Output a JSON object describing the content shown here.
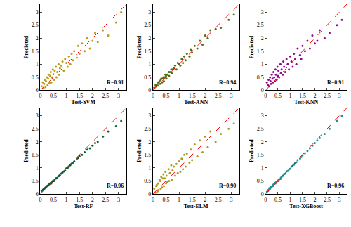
{
  "chart_data": [
    {
      "type": "scatter",
      "x_label": "Test-SVM",
      "y_label": "Predicted",
      "annotation": "R=0.91",
      "xlim": [
        0,
        3.3
      ],
      "ylim": [
        0,
        3.3
      ],
      "xticks": [
        0,
        0.5,
        1,
        1.5,
        2,
        2.5,
        3
      ],
      "yticks": [
        0,
        0.5,
        1,
        1.5,
        2,
        2.5,
        3
      ],
      "grid": false,
      "series": [
        {
          "type": "scatter",
          "color": "#b89e12",
          "marker": "circle",
          "x": [
            0.05,
            0.1,
            0.12,
            0.15,
            0.18,
            0.2,
            0.22,
            0.25,
            0.28,
            0.3,
            0.32,
            0.35,
            0.38,
            0.4,
            0.42,
            0.45,
            0.48,
            0.5,
            0.52,
            0.55,
            0.6,
            0.62,
            0.65,
            0.7,
            0.72,
            0.75,
            0.8,
            0.85,
            0.9,
            0.95,
            1.0,
            1.05,
            1.1,
            1.15,
            1.2,
            1.25,
            1.3,
            1.4,
            1.45,
            1.5,
            1.6,
            1.7,
            1.8,
            1.9,
            2.0,
            2.1,
            2.2,
            2.4,
            2.6,
            2.9,
            3.1
          ],
          "y": [
            0.15,
            0.3,
            0.08,
            0.25,
            0.4,
            0.12,
            0.35,
            0.5,
            0.2,
            0.45,
            0.6,
            0.28,
            0.55,
            0.7,
            0.3,
            0.5,
            0.8,
            0.62,
            0.4,
            0.75,
            0.9,
            0.5,
            0.7,
            1.0,
            0.6,
            0.85,
            0.95,
            1.1,
            0.75,
            1.2,
            1.05,
            0.9,
            1.3,
            1.0,
            1.4,
            1.15,
            1.5,
            1.25,
            1.7,
            1.4,
            1.8,
            1.5,
            2.0,
            1.6,
            1.9,
            2.2,
            1.85,
            2.3,
            2.1,
            2.6,
            3.0
          ]
        },
        {
          "type": "line",
          "color": "#ff0000",
          "line_style": "dash",
          "x": [
            0,
            3.3
          ],
          "y": [
            0,
            3.3
          ]
        }
      ]
    },
    {
      "type": "scatter",
      "x_label": "Test-ANN",
      "y_label": "Predicted",
      "annotation": "R=0.94",
      "xlim": [
        0,
        3.3
      ],
      "ylim": [
        0,
        3.3
      ],
      "xticks": [
        0,
        0.5,
        1,
        1.5,
        2,
        2.5,
        3
      ],
      "yticks": [
        0,
        0.5,
        1,
        1.5,
        2,
        2.5,
        3
      ],
      "grid": false,
      "series": [
        {
          "type": "scatter",
          "color": "#4f6e14",
          "marker": "circle",
          "x": [
            0.05,
            0.1,
            0.12,
            0.15,
            0.18,
            0.2,
            0.22,
            0.25,
            0.28,
            0.3,
            0.32,
            0.35,
            0.38,
            0.4,
            0.42,
            0.45,
            0.48,
            0.5,
            0.52,
            0.55,
            0.6,
            0.62,
            0.65,
            0.7,
            0.72,
            0.75,
            0.8,
            0.85,
            0.9,
            0.95,
            1.0,
            1.05,
            1.1,
            1.15,
            1.2,
            1.25,
            1.3,
            1.4,
            1.45,
            1.5,
            1.6,
            1.7,
            1.8,
            1.9,
            2.0,
            2.1,
            2.2,
            2.4,
            2.6,
            2.9,
            3.1
          ],
          "y": [
            0.1,
            0.2,
            0.15,
            0.2,
            0.3,
            0.18,
            0.3,
            0.35,
            0.25,
            0.4,
            0.45,
            0.3,
            0.45,
            0.5,
            0.35,
            0.5,
            0.6,
            0.55,
            0.45,
            0.6,
            0.7,
            0.55,
            0.7,
            0.8,
            0.65,
            0.8,
            0.85,
            0.95,
            0.8,
            1.05,
            1.0,
            0.95,
            1.2,
            1.05,
            1.3,
            1.15,
            1.4,
            1.3,
            1.55,
            1.45,
            1.7,
            1.6,
            1.9,
            1.75,
            2.1,
            2.0,
            2.3,
            2.35,
            2.4,
            2.7,
            2.9
          ]
        },
        {
          "type": "line",
          "color": "#ff0000",
          "line_style": "dash",
          "x": [
            0,
            3.3
          ],
          "y": [
            0,
            3.3
          ]
        }
      ]
    },
    {
      "type": "scatter",
      "x_label": "Test-KNN",
      "y_label": "Predicted",
      "annotation": "R=0.91",
      "xlim": [
        0,
        3.3
      ],
      "ylim": [
        0,
        3.3
      ],
      "xticks": [
        0,
        0.5,
        1,
        1.5,
        2,
        2.5,
        3
      ],
      "yticks": [
        0,
        0.5,
        1,
        1.5,
        2,
        2.5,
        3
      ],
      "grid": false,
      "series": [
        {
          "type": "scatter",
          "color": "#8e0a8e",
          "marker": "circle",
          "x": [
            0.05,
            0.1,
            0.12,
            0.15,
            0.18,
            0.2,
            0.22,
            0.25,
            0.28,
            0.3,
            0.32,
            0.35,
            0.38,
            0.4,
            0.42,
            0.45,
            0.48,
            0.5,
            0.52,
            0.55,
            0.6,
            0.62,
            0.65,
            0.7,
            0.72,
            0.75,
            0.8,
            0.85,
            0.9,
            0.95,
            1.0,
            1.05,
            1.1,
            1.15,
            1.2,
            1.25,
            1.3,
            1.4,
            1.45,
            1.5,
            1.6,
            1.7,
            1.8,
            1.9,
            2.0,
            2.1,
            2.2,
            2.4,
            2.6,
            2.9,
            3.1
          ],
          "y": [
            0.3,
            0.2,
            0.4,
            0.15,
            0.5,
            0.35,
            0.25,
            0.6,
            0.45,
            0.3,
            0.7,
            0.5,
            0.35,
            0.8,
            0.6,
            0.4,
            0.9,
            0.55,
            0.75,
            0.5,
            1.0,
            0.65,
            0.8,
            0.6,
            1.1,
            0.9,
            0.7,
            1.2,
            1.0,
            0.8,
            1.3,
            1.1,
            0.9,
            1.4,
            1.2,
            1.0,
            1.6,
            1.35,
            1.2,
            1.7,
            1.5,
            1.9,
            1.6,
            2.1,
            1.8,
            1.9,
            2.3,
            2.0,
            2.2,
            2.5,
            2.7
          ]
        },
        {
          "type": "line",
          "color": "#ff0000",
          "line_style": "dash",
          "x": [
            0,
            3.3
          ],
          "y": [
            0,
            3.3
          ]
        }
      ]
    },
    {
      "type": "scatter",
      "x_label": "Test-RF",
      "y_label": "Predicted",
      "annotation": "R=0.96",
      "xlim": [
        0,
        3.3
      ],
      "ylim": [
        0,
        3.3
      ],
      "xticks": [
        0,
        0.5,
        1,
        1.5,
        2,
        2.5,
        3
      ],
      "yticks": [
        0,
        0.5,
        1,
        1.5,
        2,
        2.5,
        3
      ],
      "grid": false,
      "series": [
        {
          "type": "scatter",
          "color": "#0d5a36",
          "marker": "circle",
          "x": [
            0.05,
            0.1,
            0.12,
            0.15,
            0.18,
            0.2,
            0.22,
            0.25,
            0.28,
            0.3,
            0.32,
            0.35,
            0.38,
            0.4,
            0.42,
            0.45,
            0.48,
            0.5,
            0.52,
            0.55,
            0.6,
            0.62,
            0.65,
            0.7,
            0.72,
            0.75,
            0.8,
            0.85,
            0.9,
            0.95,
            1.0,
            1.05,
            1.1,
            1.15,
            1.2,
            1.25,
            1.3,
            1.4,
            1.45,
            1.5,
            1.6,
            1.7,
            1.8,
            1.9,
            2.0,
            2.1,
            2.2,
            2.4,
            2.6,
            2.9,
            3.1
          ],
          "y": [
            0.12,
            0.15,
            0.18,
            0.2,
            0.22,
            0.25,
            0.25,
            0.3,
            0.3,
            0.33,
            0.35,
            0.38,
            0.4,
            0.42,
            0.4,
            0.45,
            0.5,
            0.5,
            0.5,
            0.55,
            0.6,
            0.6,
            0.62,
            0.68,
            0.7,
            0.72,
            0.78,
            0.82,
            0.86,
            0.9,
            0.98,
            1.0,
            1.05,
            1.1,
            1.15,
            1.2,
            1.25,
            1.35,
            1.38,
            1.45,
            1.5,
            1.6,
            1.7,
            1.75,
            1.85,
            1.95,
            2.0,
            2.2,
            2.4,
            2.6,
            2.8
          ]
        },
        {
          "type": "line",
          "color": "#ff0000",
          "line_style": "dash",
          "x": [
            0,
            3.3
          ],
          "y": [
            0,
            3.3
          ]
        }
      ]
    },
    {
      "type": "scatter",
      "x_label": "Test-ELM",
      "y_label": "Predicted",
      "annotation": "R=0.90",
      "xlim": [
        0,
        3.3
      ],
      "ylim": [
        0,
        3.3
      ],
      "xticks": [
        0,
        0.5,
        1,
        1.5,
        2,
        2.5,
        3
      ],
      "yticks": [
        0,
        0.5,
        1,
        1.5,
        2,
        2.5,
        3
      ],
      "grid": false,
      "series": [
        {
          "type": "scatter",
          "color": "#a89a1a",
          "marker": "circle",
          "x": [
            0.05,
            0.1,
            0.12,
            0.15,
            0.18,
            0.2,
            0.22,
            0.25,
            0.28,
            0.3,
            0.32,
            0.35,
            0.38,
            0.4,
            0.42,
            0.45,
            0.48,
            0.5,
            0.52,
            0.55,
            0.6,
            0.62,
            0.65,
            0.7,
            0.72,
            0.75,
            0.8,
            0.85,
            0.9,
            0.95,
            1.0,
            1.05,
            1.1,
            1.15,
            1.2,
            1.25,
            1.3,
            1.4,
            1.45,
            1.5,
            1.6,
            1.7,
            1.8,
            1.9,
            2.0,
            2.1,
            2.2,
            2.4,
            2.6,
            2.9,
            3.1
          ],
          "y": [
            0.2,
            0.05,
            0.3,
            0.35,
            0.1,
            0.4,
            0.15,
            0.55,
            0.5,
            0.2,
            0.65,
            0.25,
            0.6,
            0.75,
            0.3,
            0.6,
            0.85,
            0.4,
            0.7,
            0.45,
            0.95,
            0.5,
            0.8,
            1.1,
            0.55,
            0.9,
            1.05,
            0.7,
            1.15,
            0.8,
            1.25,
            0.85,
            1.35,
            0.95,
            1.5,
            1.05,
            1.55,
            1.2,
            1.7,
            1.3,
            1.9,
            1.45,
            2.05,
            1.6,
            2.2,
            1.8,
            2.4,
            2.0,
            2.3,
            2.5,
            2.7
          ]
        },
        {
          "type": "line",
          "color": "#ff0000",
          "line_style": "dash",
          "x": [
            0,
            3.3
          ],
          "y": [
            0,
            3.3
          ]
        }
      ]
    },
    {
      "type": "scatter",
      "x_label": "Test-XGBoost",
      "y_label": "Predicted",
      "annotation": "R=0.96",
      "xlim": [
        0,
        3.3
      ],
      "ylim": [
        0,
        3.3
      ],
      "xticks": [
        0,
        0.5,
        1,
        1.5,
        2,
        2.5,
        3
      ],
      "yticks": [
        0,
        0.5,
        1,
        1.5,
        2,
        2.5,
        3
      ],
      "grid": false,
      "series": [
        {
          "type": "scatter",
          "color": "#1e9090",
          "marker": "circle",
          "x": [
            0.05,
            0.1,
            0.12,
            0.15,
            0.18,
            0.2,
            0.22,
            0.25,
            0.28,
            0.3,
            0.32,
            0.35,
            0.38,
            0.4,
            0.42,
            0.45,
            0.48,
            0.5,
            0.52,
            0.55,
            0.6,
            0.62,
            0.65,
            0.7,
            0.72,
            0.75,
            0.8,
            0.85,
            0.9,
            0.95,
            1.0,
            1.05,
            1.1,
            1.15,
            1.2,
            1.25,
            1.3,
            1.4,
            1.45,
            1.5,
            1.6,
            1.7,
            1.8,
            1.9,
            2.0,
            2.1,
            2.2,
            2.4,
            2.6,
            2.9,
            3.1
          ],
          "y": [
            0.08,
            0.12,
            0.16,
            0.22,
            0.2,
            0.24,
            0.28,
            0.27,
            0.32,
            0.31,
            0.36,
            0.38,
            0.42,
            0.4,
            0.44,
            0.47,
            0.5,
            0.52,
            0.5,
            0.56,
            0.58,
            0.62,
            0.66,
            0.7,
            0.7,
            0.76,
            0.78,
            0.86,
            0.88,
            0.94,
            0.97,
            1.05,
            1.08,
            1.12,
            1.18,
            1.22,
            1.3,
            1.36,
            1.42,
            1.48,
            1.56,
            1.65,
            1.75,
            1.85,
            1.95,
            2.05,
            2.15,
            2.3,
            2.5,
            2.8,
            3.0
          ]
        },
        {
          "type": "line",
          "color": "#ff0000",
          "line_style": "dash",
          "x": [
            0,
            3.3
          ],
          "y": [
            0,
            3.3
          ]
        }
      ]
    }
  ]
}
